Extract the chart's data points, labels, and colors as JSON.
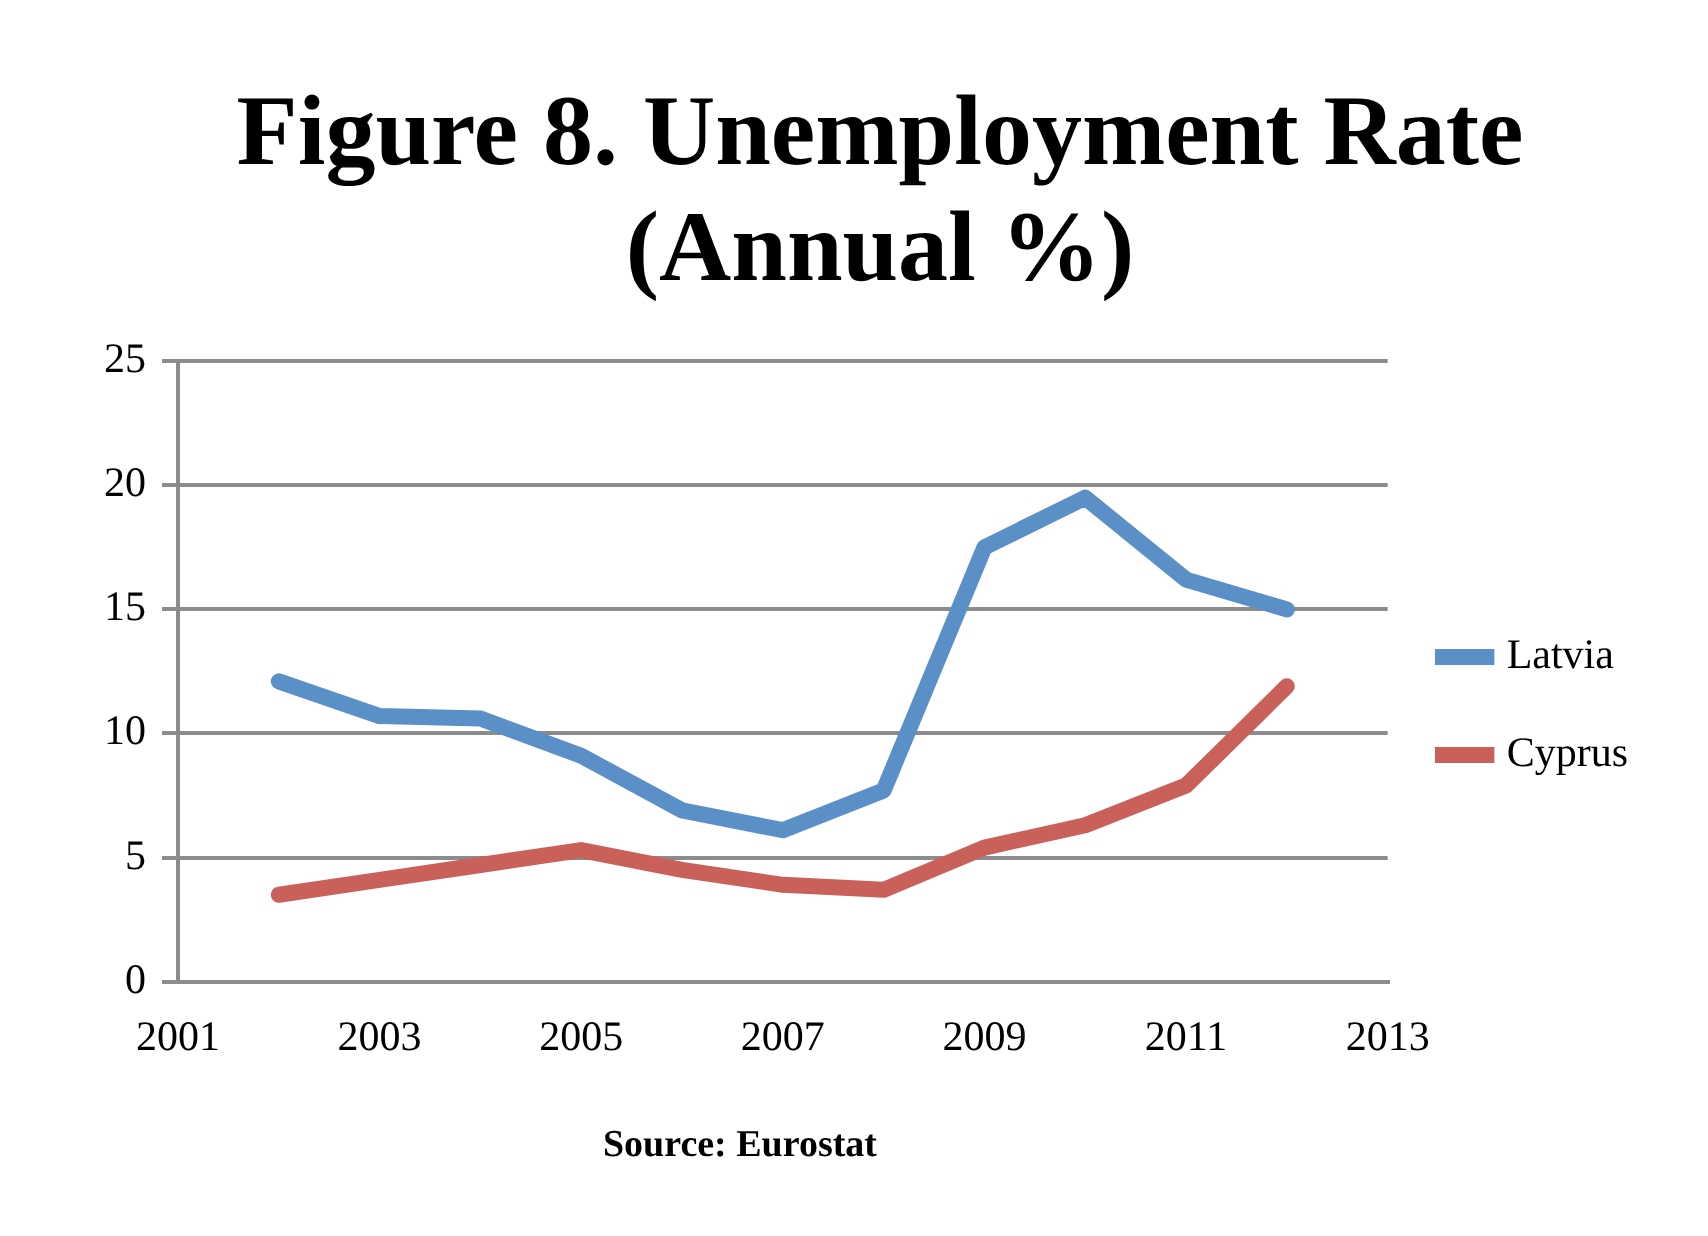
{
  "chart_data": {
    "type": "line",
    "title": "Figure 8. Unemployment Rate (Annual %)",
    "annotations": [
      "Source: Eurostat"
    ],
    "x": [
      2002,
      2003,
      2004,
      2005,
      2006,
      2007,
      2008,
      2009,
      2010,
      2011,
      2012
    ],
    "series": [
      {
        "name": "Latvia",
        "color": "#5b8fc7",
        "values": [
          12.1,
          10.7,
          10.6,
          9.1,
          6.9,
          6.1,
          7.7,
          17.5,
          19.5,
          16.2,
          15.0
        ]
      },
      {
        "name": "Cyprus",
        "color": "#c9605a",
        "values": [
          3.5,
          4.1,
          4.7,
          5.3,
          4.5,
          3.9,
          3.7,
          5.4,
          6.3,
          7.9,
          11.9
        ]
      }
    ],
    "xlim": [
      2001,
      2013
    ],
    "xticks": [
      2001,
      2003,
      2005,
      2007,
      2009,
      2011,
      2013
    ],
    "ylim": [
      0,
      25
    ],
    "yticks": [
      0,
      5,
      10,
      15,
      20,
      25
    ],
    "grid": "y",
    "legend": "right",
    "marker": "none",
    "line_style": "solid"
  }
}
